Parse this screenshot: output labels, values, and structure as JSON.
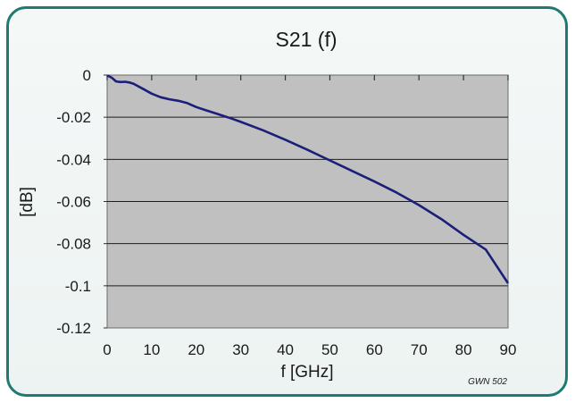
{
  "chart_data": {
    "type": "line",
    "title": "S21 (f)",
    "xlabel": "f [GHz]",
    "ylabel": "[dB]",
    "xlim": [
      0,
      90
    ],
    "ylim": [
      -0.12,
      0
    ],
    "xticks": [
      "0",
      "10",
      "20",
      "30",
      "40",
      "50",
      "60",
      "70",
      "80",
      "90"
    ],
    "yticks": [
      "0",
      "-0.02",
      "-0.04",
      "-0.06",
      "-0.08",
      "-0.1",
      "-0.12"
    ],
    "grid": true,
    "legend": "none",
    "plot_background": "#c0c0c0",
    "line_color": "#1b1f7a",
    "series": [
      {
        "x": [
          0,
          1,
          2,
          3,
          4,
          5,
          6,
          8,
          10,
          12,
          14,
          16,
          18,
          20,
          22,
          25,
          28,
          30,
          35,
          40,
          45,
          50,
          55,
          60,
          65,
          70,
          75,
          80,
          85,
          90
        ],
        "y": [
          -0.0002,
          -0.0012,
          -0.003,
          -0.0033,
          -0.0032,
          -0.0035,
          -0.0042,
          -0.0065,
          -0.0088,
          -0.0105,
          -0.0115,
          -0.0122,
          -0.0133,
          -0.0152,
          -0.0166,
          -0.0186,
          -0.0207,
          -0.0222,
          -0.0262,
          -0.0307,
          -0.0355,
          -0.0405,
          -0.0455,
          -0.0505,
          -0.0558,
          -0.0617,
          -0.0683,
          -0.0758,
          -0.0828,
          -0.0988
        ]
      }
    ]
  },
  "watermark": "GWN 502"
}
